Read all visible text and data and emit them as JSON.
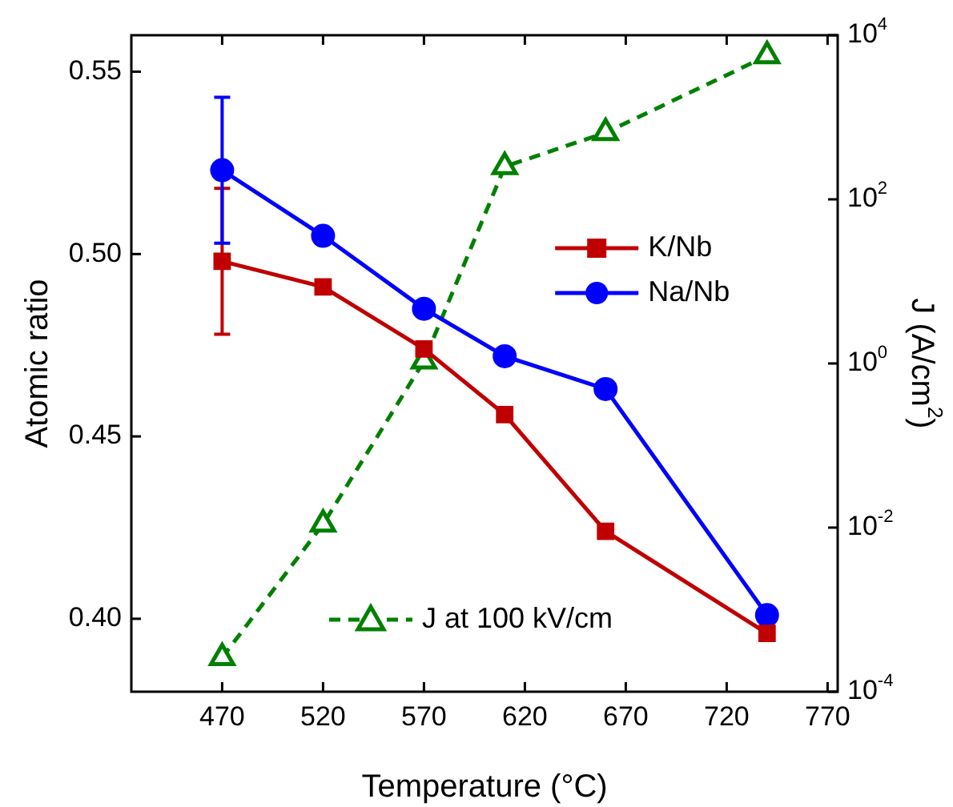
{
  "chart_data": {
    "type": "line",
    "xlabel": "Temperature (°C)",
    "ylabel": "Atomic ratio",
    "y2label": "J (A/cm$^{2}$)",
    "x": [
      470,
      520,
      570,
      610,
      660,
      740
    ],
    "xlim": [
      425,
      775
    ],
    "xticks": [
      470,
      520,
      570,
      620,
      670,
      720,
      770
    ],
    "ylim": [
      0.38,
      0.56
    ],
    "yticks": [
      {
        "value": 0.4,
        "label": "0.40"
      },
      0.45,
      {
        "value": 0.5,
        "label": "0.50"
      },
      0.55
    ],
    "y2lim": [
      0.0001,
      10000
    ],
    "y2ticks": [
      {
        "value": 0.0001,
        "label": "10$^{-4}$"
      },
      {
        "value": 0.01,
        "label": "10$^{-2}$"
      },
      {
        "value": 1,
        "label": "10$^{0}$"
      },
      {
        "value": 100,
        "label": "10$^{2}$"
      },
      {
        "value": 10000,
        "label": "10$^{4}$"
      }
    ],
    "log": "y2",
    "grid": false,
    "legend": "right",
    "series": [
      {
        "name": "K/Nb",
        "color": "#c00000",
        "marker": "square",
        "line_style": "solid",
        "values": [
          0.498,
          0.491,
          0.474,
          0.456,
          0.424,
          0.396
        ],
        "errors": [
          0.02,
          null,
          null,
          null,
          null,
          null
        ]
      },
      {
        "name": "Na/Nb",
        "color": "#0000ff",
        "marker": "circle",
        "line_style": "solid",
        "values": [
          0.523,
          0.505,
          0.485,
          0.472,
          0.463,
          0.401
        ],
        "errors": [
          0.02,
          null,
          null,
          null,
          null,
          null
        ]
      },
      {
        "name": "J at 100 kV/cm",
        "color": "#008000",
        "marker": "triangle",
        "line_style": "dashed",
        "axis": "y2",
        "values": [
          0.00026,
          0.011,
          1.07,
          250,
          650,
          5600
        ]
      }
    ]
  }
}
